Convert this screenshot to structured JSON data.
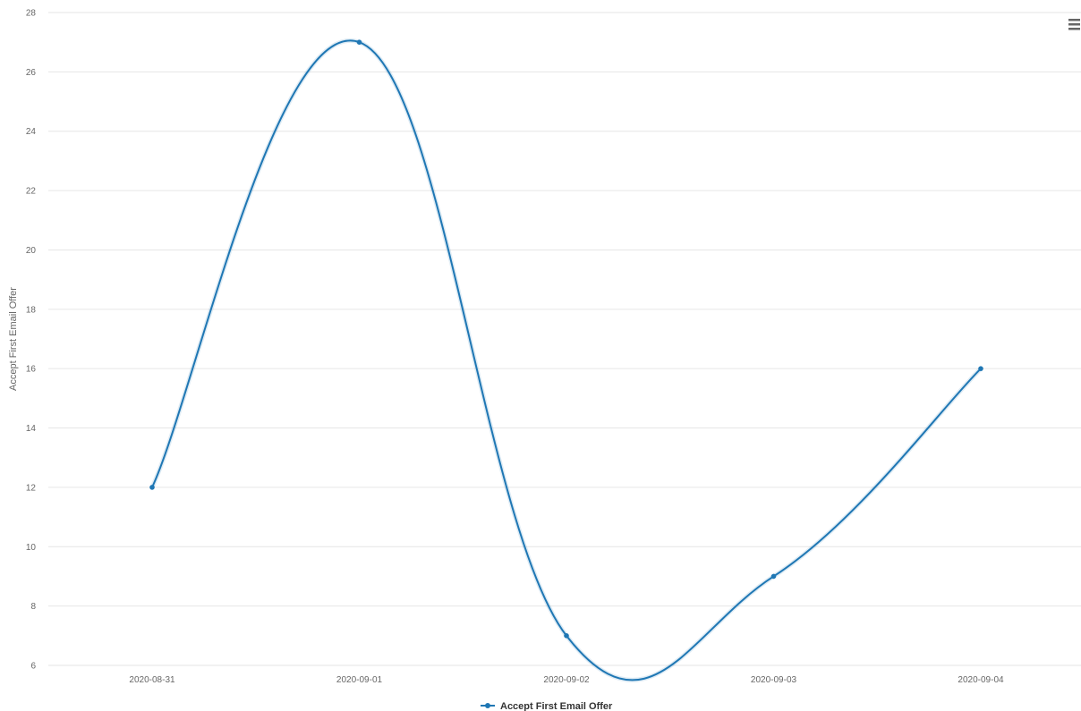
{
  "chart_data": {
    "type": "line",
    "smooth": true,
    "title": "",
    "xlabel": "",
    "ylabel": "Accept First Email Offer",
    "categories": [
      "2020-08-31",
      "2020-09-01",
      "2020-09-02",
      "2020-09-03",
      "2020-09-04"
    ],
    "series": [
      {
        "name": "Accept First Email Offer",
        "values": [
          12,
          27,
          7,
          9,
          16
        ],
        "color": "#1f77b4"
      }
    ],
    "ylim": [
      6,
      28
    ],
    "yticks": [
      6,
      8,
      10,
      12,
      14,
      16,
      18,
      20,
      22,
      24,
      26,
      28
    ],
    "grid": true,
    "legend_position": "bottom-center"
  },
  "menu": {
    "icon": "hamburger-menu-icon"
  },
  "colors": {
    "line": "#1f77b4",
    "grid": "#e6e6e6",
    "tick_text": "#666666",
    "legend_text": "#333333"
  }
}
